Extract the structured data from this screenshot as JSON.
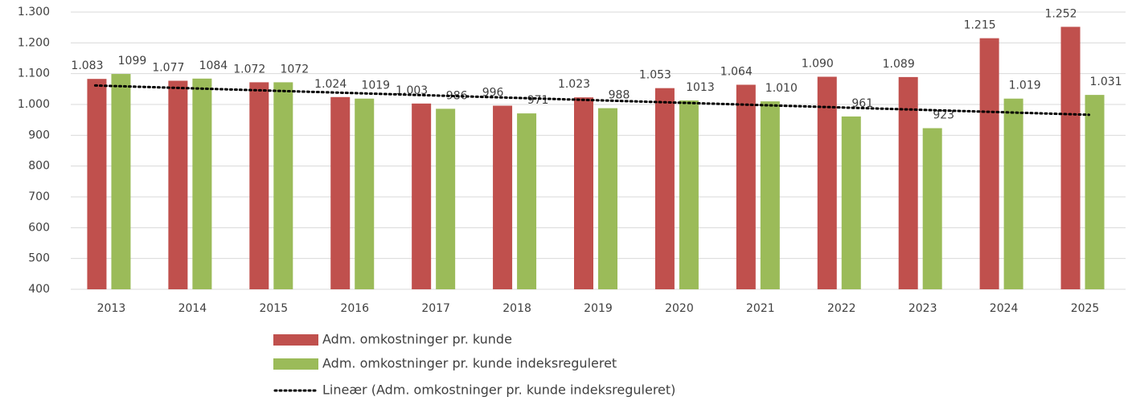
{
  "chart_data": {
    "type": "bar",
    "categories": [
      "2013",
      "2014",
      "2015",
      "2016",
      "2017",
      "2018",
      "2019",
      "2020",
      "2021",
      "2022",
      "2023",
      "2024",
      "2025"
    ],
    "series": [
      {
        "name": "Adm. omkostninger pr. kunde",
        "color": "#c0504d",
        "values": [
          1083,
          1077,
          1072,
          1024,
          1003,
          996,
          1023,
          1053,
          1064,
          1090,
          1089,
          1215,
          1252
        ],
        "value_labels": [
          "1.083",
          "1.077",
          "1.072",
          "1.024",
          "1.003",
          "996",
          "1.023",
          "1.053",
          "1.064",
          "1.090",
          "1.089",
          "1.215",
          "1.252"
        ]
      },
      {
        "name": "Adm. omkostninger pr. kunde indeksreguleret",
        "color": "#9bbb59",
        "values": [
          1099,
          1084,
          1072,
          1019,
          986,
          971,
          988,
          1013,
          1010,
          961,
          923,
          1019,
          1031
        ],
        "value_labels": [
          "1099",
          "1084",
          "1072",
          "1019",
          "986",
          "971",
          "988",
          "1013",
          "1.010",
          "961",
          "923",
          "1.019",
          "1.031"
        ]
      }
    ],
    "trendline": {
      "name": "Lineær (Adm. omkostninger pr. kunde indeksreguleret)",
      "color": "#000000"
    },
    "ylim": [
      400,
      1300
    ],
    "yticks": [
      400,
      500,
      600,
      700,
      800,
      900,
      {
        "value": 1000,
        "label": "1.000"
      },
      {
        "value": 1100,
        "label": "1.100"
      },
      {
        "value": 1200,
        "label": "1.200"
      },
      {
        "value": 1300,
        "label": "1.300"
      }
    ],
    "grid": true
  }
}
